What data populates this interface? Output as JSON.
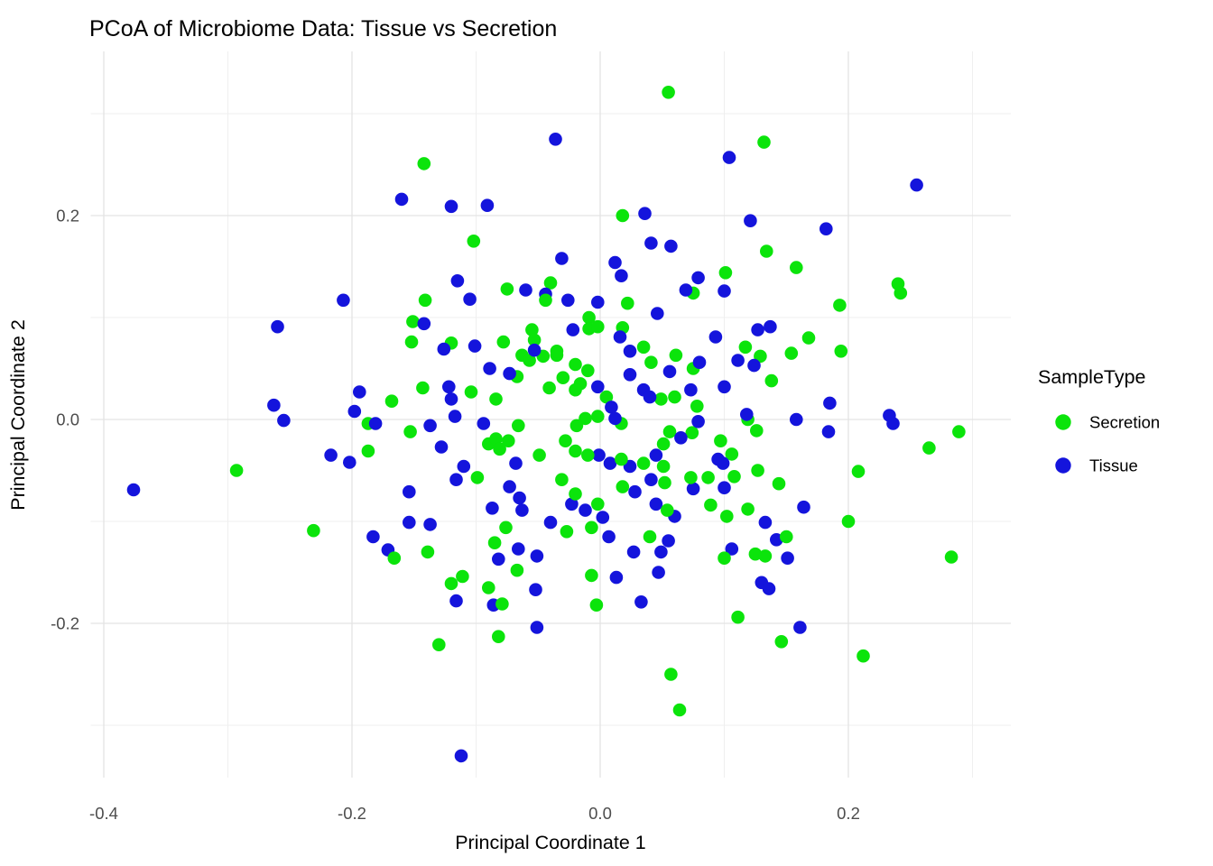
{
  "chart_data": {
    "type": "scatter",
    "title": "PCoA of Microbiome Data: Tissue vs Secretion",
    "xlabel": "Principal Coordinate 1",
    "ylabel": "Principal Coordinate 2",
    "legend_title": "SampleType",
    "legend_position": "right",
    "grid": true,
    "xlim": [
      -0.411,
      0.331
    ],
    "ylim": [
      -0.357,
      0.361
    ],
    "x_ticks": [
      {
        "value": -0.4,
        "label": "-0.4"
      },
      {
        "value": -0.2,
        "label": "-0.2"
      },
      {
        "value": 0.0,
        "label": "0.0"
      },
      {
        "value": 0.2,
        "label": "0.2"
      }
    ],
    "y_ticks": [
      {
        "value": 0.2,
        "label": "0.2"
      },
      {
        "value": 0.0,
        "label": "0.0"
      },
      {
        "value": -0.2,
        "label": "-0.2"
      }
    ],
    "x_minor_ticks": [
      -0.3,
      -0.1,
      0.1,
      0.3
    ],
    "y_minor_ticks": [
      0.3,
      0.1,
      -0.1,
      -0.3
    ],
    "colors": {
      "secretion": "#0be40b",
      "tissue": "#1414dc",
      "grid_major": "#e3e3e3",
      "grid_minor": "#efefef",
      "tick_text": "#4d4d4d"
    },
    "series": [
      {
        "name": "Secretion",
        "color": "#0be40b",
        "points": [
          [
            0.055,
            0.321
          ],
          [
            -0.142,
            0.251
          ],
          [
            0.018,
            0.2
          ],
          [
            -0.102,
            0.175
          ],
          [
            -0.075,
            0.128
          ],
          [
            -0.04,
            0.134
          ],
          [
            0.075,
            0.124
          ],
          [
            -0.141,
            0.117
          ],
          [
            0.132,
            0.272
          ],
          [
            0.134,
            0.165
          ],
          [
            0.158,
            0.149
          ],
          [
            0.101,
            0.144
          ],
          [
            0.24,
            0.133
          ],
          [
            0.242,
            0.124
          ],
          [
            0.193,
            0.112
          ],
          [
            -0.168,
            0.018
          ],
          [
            -0.187,
            -0.004
          ],
          [
            -0.187,
            -0.031
          ],
          [
            -0.293,
            -0.05
          ],
          [
            -0.231,
            -0.109
          ],
          [
            -0.044,
            0.117
          ],
          [
            -0.009,
            0.1
          ],
          [
            0.022,
            0.114
          ],
          [
            0.018,
            0.09
          ],
          [
            -0.151,
            0.096
          ],
          [
            -0.152,
            0.076
          ],
          [
            -0.12,
            0.075
          ],
          [
            -0.078,
            0.076
          ],
          [
            -0.067,
            0.042
          ],
          [
            -0.055,
            0.088
          ],
          [
            -0.053,
            0.078
          ],
          [
            -0.063,
            0.063
          ],
          [
            -0.057,
            0.058
          ],
          [
            -0.046,
            0.062
          ],
          [
            -0.035,
            0.063
          ],
          [
            -0.143,
            0.031
          ],
          [
            -0.104,
            0.027
          ],
          [
            -0.084,
            0.02
          ],
          [
            -0.066,
            -0.006
          ],
          [
            -0.153,
            -0.012
          ],
          [
            -0.09,
            -0.024
          ],
          [
            -0.084,
            -0.019
          ],
          [
            -0.074,
            -0.021
          ],
          [
            -0.081,
            -0.029
          ],
          [
            -0.049,
            -0.035
          ],
          [
            -0.099,
            -0.057
          ],
          [
            -0.076,
            -0.106
          ],
          [
            -0.027,
            -0.11
          ],
          [
            -0.085,
            -0.121
          ],
          [
            -0.035,
            0.067
          ],
          [
            -0.02,
            0.054
          ],
          [
            -0.01,
            0.048
          ],
          [
            -0.009,
            0.089
          ],
          [
            -0.002,
            0.091
          ],
          [
            0.035,
            0.071
          ],
          [
            0.041,
            0.056
          ],
          [
            0.061,
            0.063
          ],
          [
            0.075,
            0.05
          ],
          [
            -0.016,
            0.035
          ],
          [
            -0.02,
            0.029
          ],
          [
            -0.03,
            0.041
          ],
          [
            -0.041,
            0.031
          ],
          [
            0.005,
            0.022
          ],
          [
            -0.002,
            0.003
          ],
          [
            0.017,
            -0.004
          ],
          [
            0.049,
            0.02
          ],
          [
            0.06,
            0.022
          ],
          [
            0.078,
            0.013
          ],
          [
            0.056,
            -0.012
          ],
          [
            0.051,
            -0.024
          ],
          [
            0.074,
            -0.013
          ],
          [
            -0.012,
            0.001
          ],
          [
            -0.019,
            -0.006
          ],
          [
            -0.028,
            -0.021
          ],
          [
            -0.02,
            -0.031
          ],
          [
            -0.01,
            -0.035
          ],
          [
            0.017,
            -0.039
          ],
          [
            0.035,
            -0.043
          ],
          [
            0.051,
            -0.046
          ],
          [
            -0.031,
            -0.059
          ],
          [
            -0.02,
            -0.073
          ],
          [
            -0.002,
            -0.083
          ],
          [
            -0.007,
            -0.106
          ],
          [
            0.018,
            -0.066
          ],
          [
            0.052,
            -0.062
          ],
          [
            0.054,
            -0.089
          ],
          [
            0.04,
            -0.115
          ],
          [
            0.073,
            -0.057
          ],
          [
            0.117,
            0.071
          ],
          [
            0.129,
            0.062
          ],
          [
            0.154,
            0.065
          ],
          [
            0.168,
            0.08
          ],
          [
            0.194,
            0.067
          ],
          [
            0.138,
            0.038
          ],
          [
            0.119,
            0.0
          ],
          [
            0.126,
            -0.011
          ],
          [
            0.289,
            -0.012
          ],
          [
            0.265,
            -0.028
          ],
          [
            0.097,
            -0.021
          ],
          [
            0.106,
            -0.034
          ],
          [
            0.087,
            -0.057
          ],
          [
            0.108,
            -0.056
          ],
          [
            0.127,
            -0.05
          ],
          [
            0.144,
            -0.063
          ],
          [
            0.208,
            -0.051
          ],
          [
            0.089,
            -0.084
          ],
          [
            0.102,
            -0.095
          ],
          [
            0.119,
            -0.088
          ],
          [
            0.2,
            -0.1
          ],
          [
            0.15,
            -0.115
          ],
          [
            -0.139,
            -0.13
          ],
          [
            -0.166,
            -0.136
          ],
          [
            -0.067,
            -0.148
          ],
          [
            -0.111,
            -0.154
          ],
          [
            -0.12,
            -0.161
          ],
          [
            -0.09,
            -0.165
          ],
          [
            -0.079,
            -0.181
          ],
          [
            -0.082,
            -0.213
          ],
          [
            -0.13,
            -0.221
          ],
          [
            -0.007,
            -0.153
          ],
          [
            -0.003,
            -0.182
          ],
          [
            0.057,
            -0.25
          ],
          [
            0.064,
            -0.285
          ],
          [
            0.1,
            -0.136
          ],
          [
            0.125,
            -0.132
          ],
          [
            0.133,
            -0.134
          ],
          [
            0.111,
            -0.194
          ],
          [
            0.146,
            -0.218
          ],
          [
            0.212,
            -0.232
          ],
          [
            0.283,
            -0.135
          ]
        ]
      },
      {
        "name": "Tissue",
        "color": "#1414dc",
        "points": [
          [
            -0.036,
            0.275
          ],
          [
            -0.16,
            0.216
          ],
          [
            -0.12,
            0.209
          ],
          [
            -0.091,
            0.21
          ],
          [
            0.036,
            0.202
          ],
          [
            0.041,
            0.173
          ],
          [
            0.057,
            0.17
          ],
          [
            -0.031,
            0.158
          ],
          [
            0.012,
            0.154
          ],
          [
            0.017,
            0.141
          ],
          [
            -0.115,
            0.136
          ],
          [
            -0.06,
            0.127
          ],
          [
            -0.044,
            0.123
          ],
          [
            0.069,
            0.127
          ],
          [
            -0.026,
            0.117
          ],
          [
            -0.105,
            0.118
          ],
          [
            0.104,
            0.257
          ],
          [
            0.255,
            0.23
          ],
          [
            0.121,
            0.195
          ],
          [
            0.182,
            0.187
          ],
          [
            0.1,
            0.126
          ],
          [
            0.079,
            0.139
          ],
          [
            -0.207,
            0.117
          ],
          [
            -0.26,
            0.091
          ],
          [
            -0.263,
            0.014
          ],
          [
            -0.255,
            -0.001
          ],
          [
            -0.194,
            0.027
          ],
          [
            -0.198,
            0.008
          ],
          [
            -0.181,
            -0.004
          ],
          [
            -0.217,
            -0.035
          ],
          [
            -0.202,
            -0.042
          ],
          [
            -0.376,
            -0.069
          ],
          [
            -0.183,
            -0.115
          ],
          [
            -0.171,
            -0.128
          ],
          [
            -0.002,
            0.115
          ],
          [
            0.046,
            0.104
          ],
          [
            -0.142,
            0.094
          ],
          [
            -0.126,
            0.069
          ],
          [
            -0.101,
            0.072
          ],
          [
            -0.089,
            0.05
          ],
          [
            -0.073,
            0.045
          ],
          [
            -0.053,
            0.068
          ],
          [
            -0.122,
            0.032
          ],
          [
            -0.12,
            0.02
          ],
          [
            -0.117,
            0.003
          ],
          [
            -0.094,
            -0.004
          ],
          [
            -0.137,
            -0.006
          ],
          [
            -0.128,
            -0.027
          ],
          [
            -0.068,
            -0.043
          ],
          [
            -0.11,
            -0.046
          ],
          [
            -0.116,
            -0.059
          ],
          [
            -0.154,
            -0.071
          ],
          [
            -0.154,
            -0.101
          ],
          [
            -0.137,
            -0.103
          ],
          [
            -0.087,
            -0.087
          ],
          [
            -0.073,
            -0.066
          ],
          [
            -0.065,
            -0.077
          ],
          [
            -0.063,
            -0.089
          ],
          [
            -0.04,
            -0.101
          ],
          [
            -0.022,
            0.088
          ],
          [
            0.016,
            0.081
          ],
          [
            0.024,
            0.067
          ],
          [
            0.056,
            0.047
          ],
          [
            -0.002,
            0.032
          ],
          [
            0.009,
            0.012
          ],
          [
            0.012,
            0.001
          ],
          [
            0.024,
            0.044
          ],
          [
            0.035,
            0.029
          ],
          [
            0.04,
            0.022
          ],
          [
            0.073,
            0.029
          ],
          [
            0.079,
            -0.002
          ],
          [
            0.065,
            -0.018
          ],
          [
            -0.001,
            -0.035
          ],
          [
            0.008,
            -0.043
          ],
          [
            0.024,
            -0.046
          ],
          [
            0.045,
            -0.035
          ],
          [
            -0.023,
            -0.083
          ],
          [
            -0.012,
            -0.089
          ],
          [
            0.002,
            -0.096
          ],
          [
            0.007,
            -0.115
          ],
          [
            0.028,
            -0.071
          ],
          [
            0.041,
            -0.059
          ],
          [
            0.045,
            -0.083
          ],
          [
            0.06,
            -0.095
          ],
          [
            0.055,
            -0.119
          ],
          [
            0.075,
            -0.068
          ],
          [
            -0.066,
            -0.127
          ],
          [
            0.093,
            0.081
          ],
          [
            0.127,
            0.088
          ],
          [
            0.137,
            0.091
          ],
          [
            0.111,
            0.058
          ],
          [
            0.124,
            0.053
          ],
          [
            0.08,
            0.056
          ],
          [
            0.1,
            0.032
          ],
          [
            0.118,
            0.005
          ],
          [
            0.158,
            0.0
          ],
          [
            0.185,
            0.016
          ],
          [
            0.184,
            -0.012
          ],
          [
            0.233,
            0.004
          ],
          [
            0.236,
            -0.004
          ],
          [
            0.095,
            -0.039
          ],
          [
            0.099,
            -0.043
          ],
          [
            0.1,
            -0.067
          ],
          [
            0.164,
            -0.086
          ],
          [
            0.133,
            -0.101
          ],
          [
            0.142,
            -0.118
          ],
          [
            0.106,
            -0.127
          ],
          [
            -0.082,
            -0.137
          ],
          [
            -0.051,
            -0.134
          ],
          [
            -0.116,
            -0.178
          ],
          [
            -0.086,
            -0.182
          ],
          [
            -0.052,
            -0.167
          ],
          [
            -0.051,
            -0.204
          ],
          [
            0.013,
            -0.155
          ],
          [
            0.033,
            -0.179
          ],
          [
            0.027,
            -0.13
          ],
          [
            0.047,
            -0.15
          ],
          [
            0.049,
            -0.13
          ],
          [
            -0.112,
            -0.33
          ],
          [
            0.151,
            -0.136
          ],
          [
            0.13,
            -0.16
          ],
          [
            0.136,
            -0.166
          ],
          [
            0.161,
            -0.204
          ]
        ]
      }
    ]
  }
}
